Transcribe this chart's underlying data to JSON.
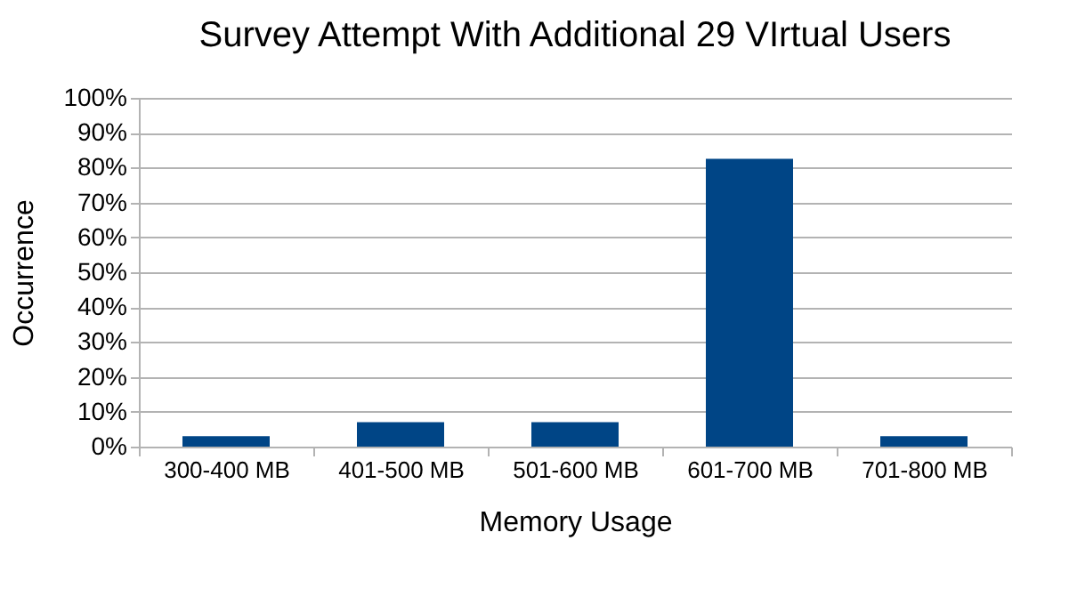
{
  "chart_data": {
    "type": "bar",
    "title": "Survey Attempt With Additional 29 VIrtual Users",
    "xlabel": "Memory Usage",
    "ylabel": "Occurrence",
    "categories": [
      "300-400 MB",
      "401-500 MB",
      "501-600 MB",
      "601-700 MB",
      "701-800 MB"
    ],
    "values": [
      3,
      7,
      7,
      82.5,
      3
    ],
    "color": "#004586",
    "ylim": [
      0,
      100
    ],
    "yticks": [
      {
        "value": 0,
        "label": "0%"
      },
      {
        "value": 10,
        "label": "10%"
      },
      {
        "value": 20,
        "label": "20%"
      },
      {
        "value": 30,
        "label": "30%"
      },
      {
        "value": 40,
        "label": "40%"
      },
      {
        "value": 50,
        "label": "50%"
      },
      {
        "value": 60,
        "label": "60%"
      },
      {
        "value": 70,
        "label": "70%"
      },
      {
        "value": 80,
        "label": "80%"
      },
      {
        "value": 90,
        "label": "90%"
      },
      {
        "value": 100,
        "label": "100%"
      }
    ],
    "grid": "y"
  }
}
